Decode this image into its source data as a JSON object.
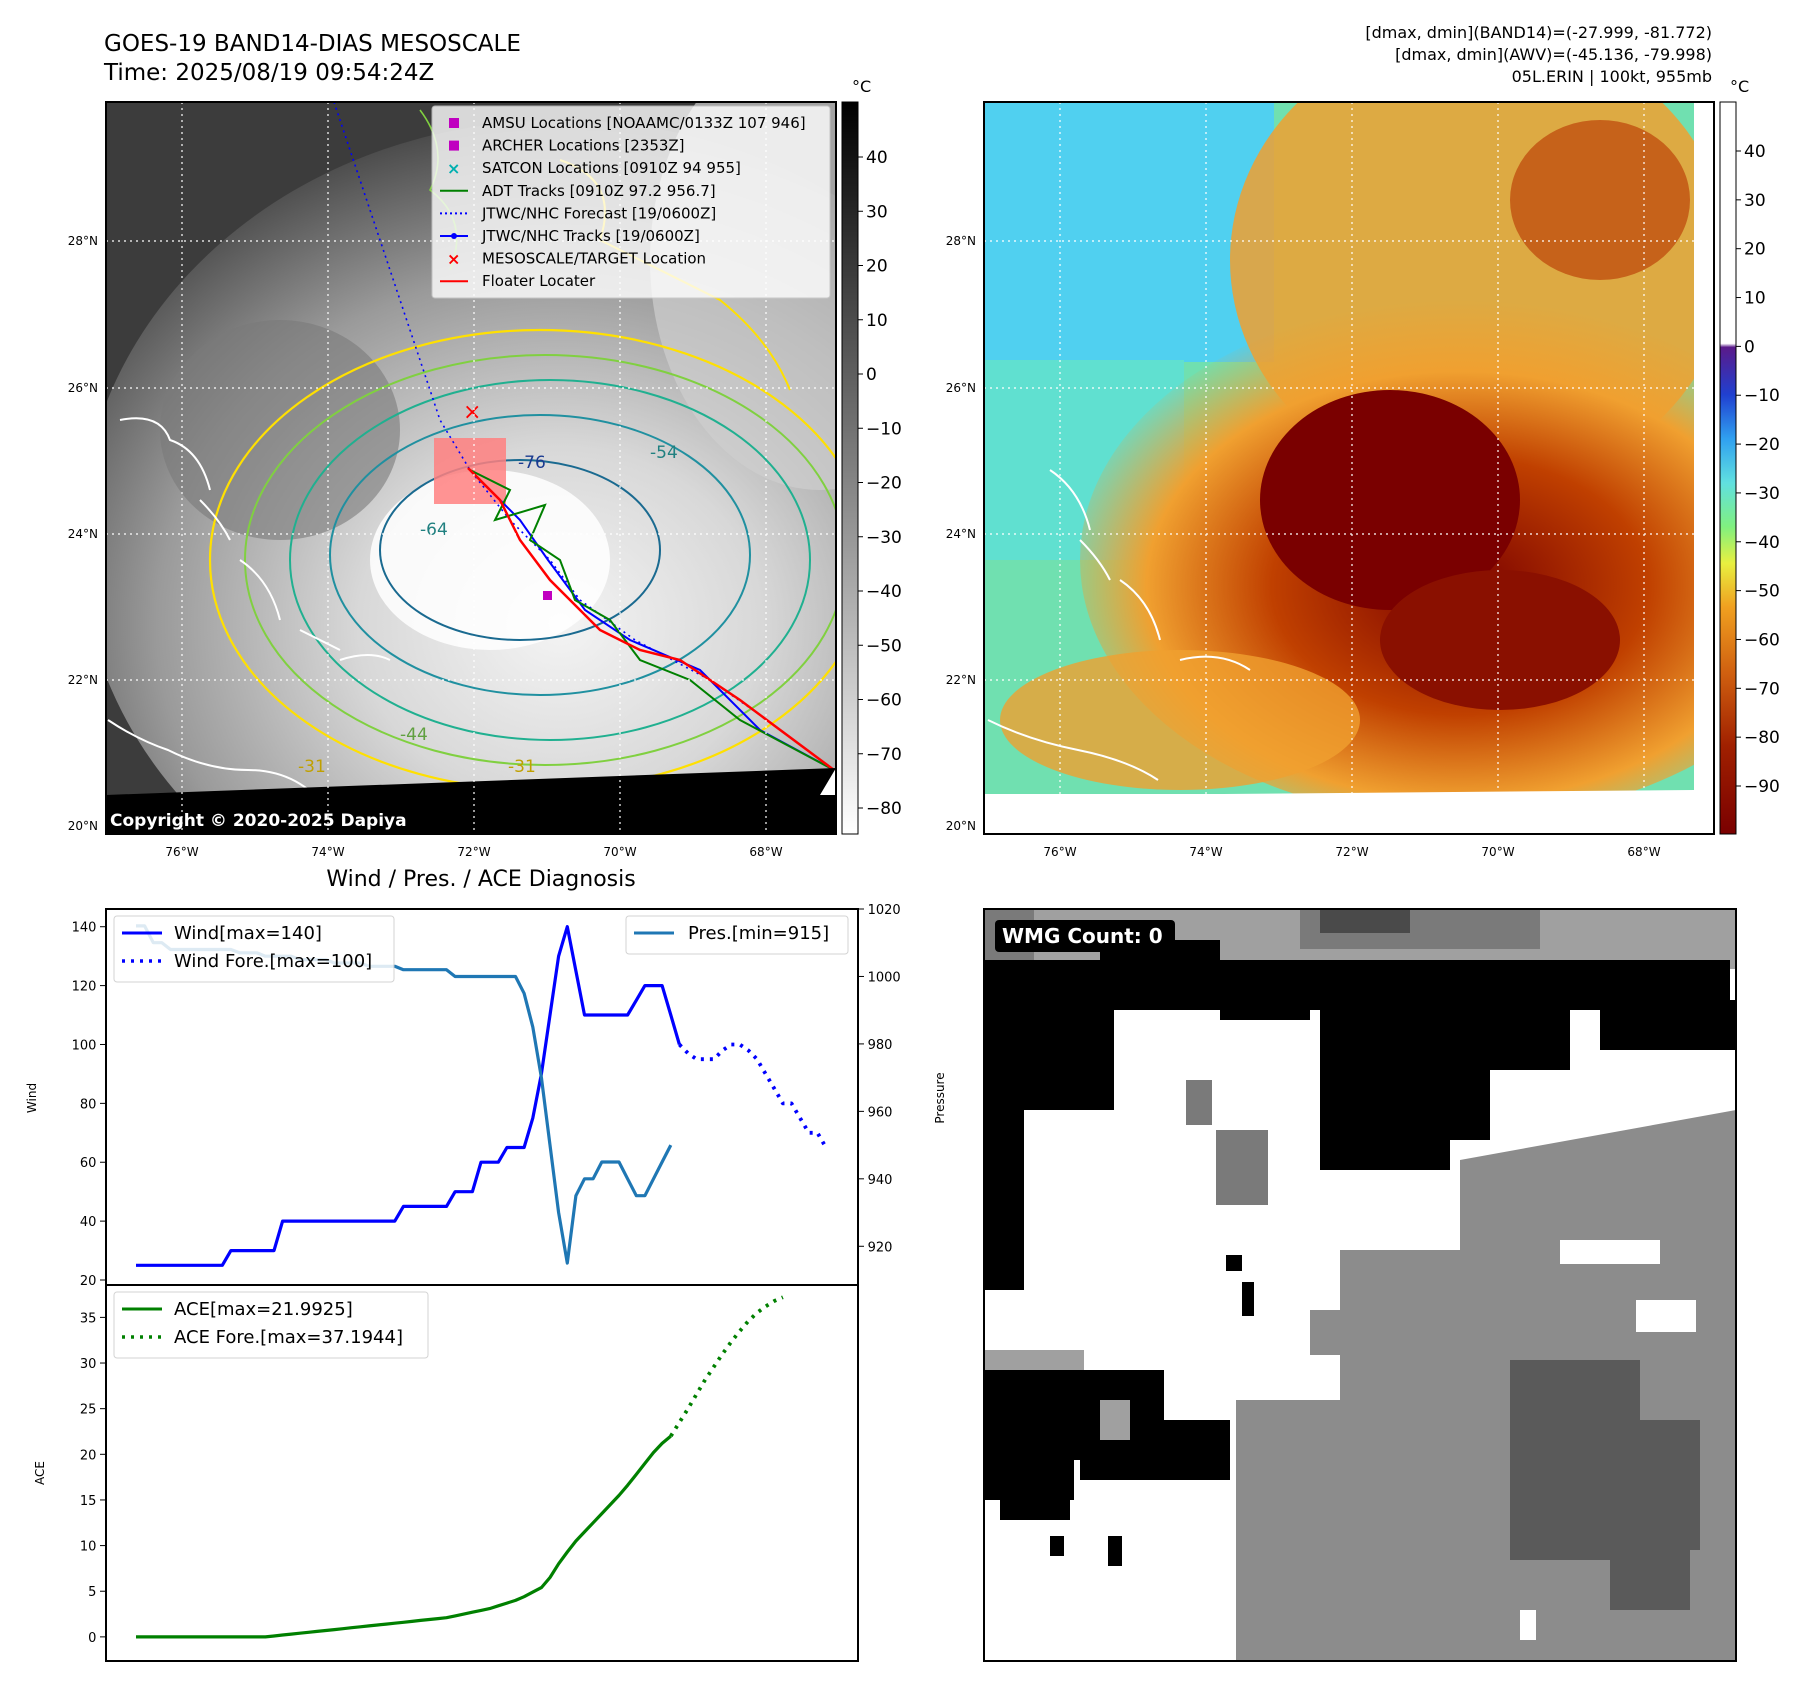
{
  "header": {
    "title_line1": "GOES-19 BAND14-DIAS MESOSCALE",
    "title_line2": "Time: 2025/08/19 09:54:24Z",
    "stats_line1": "[dmax, dmin](BAND14)=(-27.999, -81.772)",
    "stats_line2": "[dmax, dmin](AWV)=(-45.136, -79.998)",
    "stats_line3": "05L.ERIN | 100kt, 955mb"
  },
  "map": {
    "lat_ticks": [
      "28°N",
      "26°N",
      "24°N",
      "22°N",
      "20°N"
    ],
    "lon_ticks": [
      "76°W",
      "74°W",
      "72°W",
      "70°W",
      "68°W"
    ],
    "copyright": "Copyright © 2020-2025 Dapiya",
    "contour_labels": [
      "-76",
      "-54",
      "-64",
      "-44",
      "-31",
      "-31"
    ],
    "colorbar_unit": "°C",
    "colorbar_left_ticks": [
      "40",
      "30",
      "20",
      "10",
      "0",
      "−10",
      "−20",
      "−30",
      "−40",
      "−50",
      "−60",
      "−70",
      "−80"
    ],
    "colorbar_right_ticks": [
      "40",
      "30",
      "20",
      "10",
      "0",
      "−10",
      "−20",
      "−30",
      "−40",
      "−50",
      "−60",
      "−70",
      "−80",
      "−90"
    ],
    "legend": [
      {
        "label": "AMSU Locations [NOAAMC/0133Z 107 946]",
        "color": "#c000c0",
        "marker": "square"
      },
      {
        "label": "ARCHER Locations [2353Z]",
        "color": "#c000c0",
        "marker": "square"
      },
      {
        "label": "SATCON Locations [0910Z 94 955]",
        "color": "#00b0b0",
        "marker": "x"
      },
      {
        "label": "ADT Tracks [0910Z 97.2 956.7]",
        "color": "#008000",
        "marker": "line"
      },
      {
        "label": "JTWC/NHC Forecast [19/0600Z]",
        "color": "#0000ff",
        "marker": "dotted"
      },
      {
        "label": "JTWC/NHC Tracks [19/0600Z]",
        "color": "#0000ff",
        "marker": "line-dot"
      },
      {
        "label": "MESOSCALE/TARGET Location",
        "color": "#ff0000",
        "marker": "x"
      },
      {
        "label": "Floater Locater",
        "color": "#ff0000",
        "marker": "line"
      }
    ]
  },
  "wmg": {
    "label": "WMG Count: 0"
  },
  "chart_data": [
    {
      "type": "line",
      "title": "Wind / Pres. / ACE Diagnosis",
      "ylabel": "Wind",
      "y2label": "Pressure",
      "ylim": [
        20,
        145
      ],
      "y2lim": [
        910,
        1020
      ],
      "yticks": [
        "20",
        "40",
        "60",
        "80",
        "100",
        "120",
        "140"
      ],
      "y2ticks": [
        "920",
        "940",
        "960",
        "980",
        "1000",
        "1020"
      ],
      "legend_left": [
        "Wind[max=140]",
        "Wind Fore.[max=100]"
      ],
      "legend_right": [
        "Pres.[min=915]"
      ],
      "series": [
        {
          "name": "Wind[max=140]",
          "color": "#0000ff",
          "style": "solid",
          "values": [
            25,
            25,
            25,
            25,
            25,
            25,
            25,
            25,
            25,
            25,
            25,
            30,
            30,
            30,
            30,
            30,
            30,
            40,
            40,
            40,
            40,
            40,
            40,
            40,
            40,
            40,
            40,
            40,
            40,
            40,
            40,
            45,
            45,
            45,
            45,
            45,
            45,
            50,
            50,
            50,
            60,
            60,
            60,
            65,
            65,
            65,
            75,
            90,
            110,
            130,
            140,
            125,
            110,
            110,
            110,
            110,
            110,
            110,
            115,
            120,
            120,
            120,
            110,
            100
          ]
        },
        {
          "name": "Wind Fore.[max=100]",
          "color": "#0000ff",
          "style": "dotted",
          "x_start": 63,
          "values": [
            100,
            97,
            95,
            95,
            95,
            98,
            100,
            100,
            98,
            95,
            90,
            85,
            80,
            80,
            75,
            70,
            70,
            65
          ]
        },
        {
          "name": "Pres.[min=915]",
          "color": "#1f77b4",
          "style": "solid",
          "axis": "right",
          "values": [
            1015,
            1015,
            1010,
            1010,
            1008,
            1008,
            1008,
            1008,
            1008,
            1008,
            1008,
            1008,
            1007,
            1007,
            1007,
            1006,
            1006,
            1006,
            1006,
            1005,
            1005,
            1005,
            1005,
            1004,
            1004,
            1004,
            1004,
            1003,
            1003,
            1003,
            1003,
            1002,
            1002,
            1002,
            1002,
            1002,
            1002,
            1000,
            1000,
            1000,
            1000,
            1000,
            1000,
            1000,
            1000,
            995,
            985,
            970,
            950,
            930,
            915,
            935,
            940,
            940,
            945,
            945,
            945,
            940,
            935,
            935,
            940,
            945,
            950
          ]
        }
      ]
    },
    {
      "type": "line",
      "ylabel": "ACE",
      "ylim": [
        -1,
        38
      ],
      "yticks": [
        "0",
        "5",
        "10",
        "15",
        "20",
        "25",
        "30",
        "35"
      ],
      "legend": [
        "ACE[max=21.9925]",
        "ACE Fore.[max=37.1944]"
      ],
      "series": [
        {
          "name": "ACE[max=21.9925]",
          "color": "#008000",
          "style": "solid",
          "values": [
            0,
            0,
            0,
            0,
            0,
            0,
            0,
            0,
            0,
            0,
            0,
            0,
            0,
            0,
            0,
            0,
            0.1,
            0.2,
            0.3,
            0.4,
            0.5,
            0.6,
            0.7,
            0.8,
            0.9,
            1.0,
            1.1,
            1.2,
            1.3,
            1.4,
            1.5,
            1.6,
            1.7,
            1.8,
            1.9,
            2.0,
            2.1,
            2.3,
            2.5,
            2.7,
            2.9,
            3.1,
            3.4,
            3.7,
            4.0,
            4.4,
            4.9,
            5.4,
            6.5,
            8.0,
            9.3,
            10.5,
            11.5,
            12.5,
            13.5,
            14.5,
            15.5,
            16.6,
            17.8,
            19.0,
            20.2,
            21.2,
            22.0
          ]
        },
        {
          "name": "ACE Fore.[max=37.1944]",
          "color": "#008000",
          "style": "dotted",
          "x_start": 62,
          "values": [
            22.0,
            23.5,
            25.0,
            26.6,
            28.2,
            29.6,
            31.0,
            32.3,
            33.5,
            34.6,
            35.5,
            36.2,
            36.8,
            37.2
          ]
        }
      ]
    }
  ]
}
